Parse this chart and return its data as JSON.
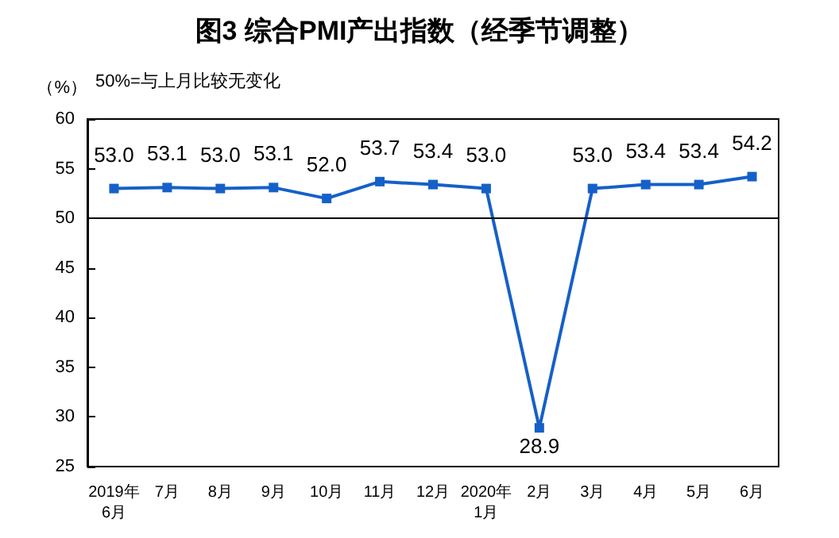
{
  "chart_data": {
    "type": "line",
    "title": "图3 综合PMI产出指数（经季节调整）",
    "ylabel": "（%）",
    "annotations": [
      "50%=与上月比较无变化"
    ],
    "categories": [
      "2019年\n6月",
      "7月",
      "8月",
      "9月",
      "10月",
      "11月",
      "12月",
      "2020年\n1月",
      "2月",
      "3月",
      "4月",
      "5月",
      "6月"
    ],
    "series": [
      {
        "color": "#1560c8",
        "values": [
          53.0,
          53.1,
          53.0,
          53.1,
          52.0,
          53.7,
          53.4,
          53.0,
          28.9,
          53.0,
          53.4,
          53.4,
          54.2
        ],
        "value_labels": [
          "53.0",
          "53.1",
          "53.0",
          "53.1",
          "52.0",
          "53.7",
          "53.4",
          "53.0",
          "28.9",
          "53.0",
          "53.4",
          "53.4",
          "54.2"
        ]
      }
    ],
    "ylim": [
      25,
      60
    ],
    "yticks": [
      25,
      30,
      35,
      40,
      45,
      50,
      55,
      60
    ],
    "ref_lines": [
      {
        "axis": "y",
        "value": 50,
        "color": "#000000"
      }
    ],
    "grid": false,
    "marker": "square",
    "line_style": "solid"
  }
}
